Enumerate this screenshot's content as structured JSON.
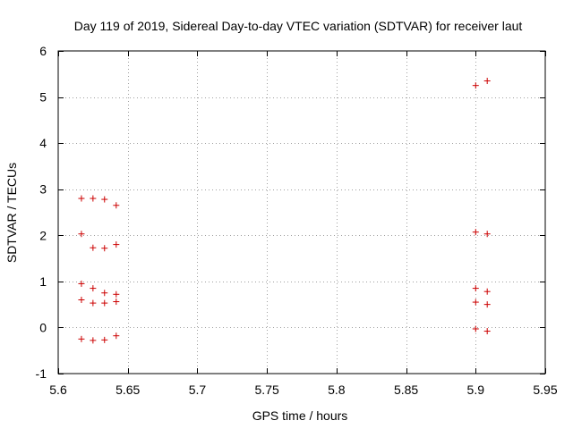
{
  "chart_data": {
    "type": "scatter",
    "title": "Day 119 of 2019, Sidereal Day-to-day VTEC variation (SDTVAR) for receiver laut",
    "xlabel": "GPS time / hours",
    "ylabel": "SDTVAR / TECUs",
    "xlim": [
      5.6,
      5.95
    ],
    "ylim": [
      -1,
      6
    ],
    "xticks": [
      5.6,
      5.65,
      5.7,
      5.75,
      5.8,
      5.85,
      5.9,
      5.95
    ],
    "xtick_labels": [
      "5.6",
      "5.65",
      "5.7",
      "5.75",
      "5.8",
      "5.85",
      "5.9",
      "5.95"
    ],
    "yticks": [
      -1,
      0,
      1,
      2,
      3,
      4,
      5,
      6
    ],
    "ytick_labels": [
      "-1",
      "0",
      "1",
      "2",
      "3",
      "4",
      "5",
      "6"
    ],
    "grid": true,
    "marker": "+",
    "color": "#cc0000",
    "series": [
      {
        "name": "SDTVAR",
        "x": [
          5.6167,
          5.625,
          5.6333,
          5.6417,
          5.6167,
          5.625,
          5.6333,
          5.6417,
          5.6167,
          5.625,
          5.6333,
          5.6417,
          5.6167,
          5.625,
          5.6333,
          5.6417,
          5.6167,
          5.625,
          5.6333,
          5.6417,
          5.9,
          5.9083,
          5.9,
          5.9083,
          5.9,
          5.9083,
          5.9,
          5.9083,
          5.9,
          5.9083
        ],
        "y": [
          2.8,
          2.8,
          2.78,
          2.65,
          2.03,
          1.73,
          1.72,
          1.8,
          0.95,
          0.85,
          0.75,
          0.72,
          0.6,
          0.53,
          0.53,
          0.56,
          -0.25,
          -0.28,
          -0.27,
          -0.18,
          5.25,
          5.35,
          2.07,
          2.03,
          0.85,
          0.78,
          0.55,
          0.5,
          -0.03,
          -0.08
        ]
      }
    ]
  }
}
